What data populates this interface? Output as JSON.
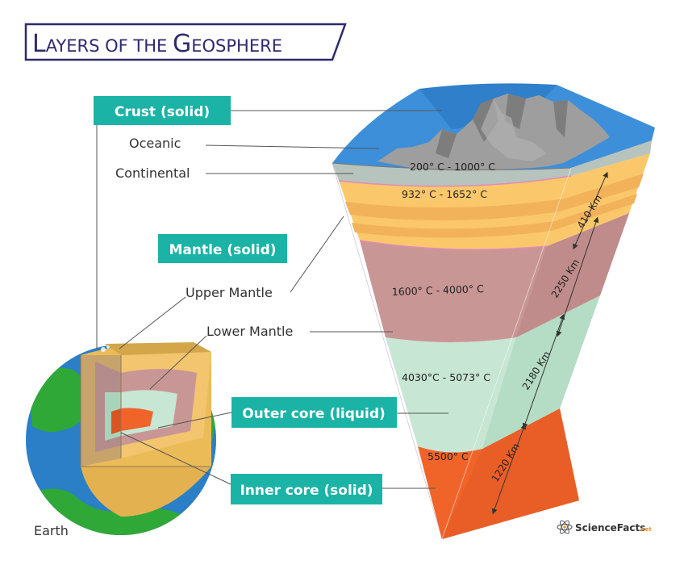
{
  "title": {
    "first_letter": "L",
    "first_rest": "AYERS OF THE ",
    "second_letter": "G",
    "second_rest": "EOSPHERE"
  },
  "labels": {
    "crust": "Crust (solid)",
    "oceanic": "Oceanic",
    "continental": "Continental",
    "mantle": "Mantle (solid)",
    "upper_mantle": "Upper Mantle",
    "lower_mantle": "Lower Mantle",
    "outer_core": "Outer core (liquid)",
    "inner_core": "Inner core (solid)",
    "earth": "Earth"
  },
  "temperatures": {
    "crust": "200° C - 1000° C",
    "upper_mantle": "932° C - 1652° C",
    "lower_mantle": "1600° C - 4000° C",
    "outer_core": "4030°C - 5073° C",
    "inner_core": "5500° C"
  },
  "thickness": {
    "upper_mantle": "410 Km",
    "lower_mantle": "2250 Km",
    "outer_core": "2180 Km",
    "inner_core": "1220 Km"
  },
  "logo": {
    "name": "ScienceFacts",
    "suffix": ".net"
  },
  "colors": {
    "title": "#2d2a6e",
    "teal_label": "#1bb3a6",
    "ocean": "#3d8fd9",
    "crust": "#b7c3bd",
    "upper_mantle": "#fbc76b",
    "lower_mantle": "#c99696",
    "outer_core": "#c7e6d3",
    "inner_core": "#f0642a",
    "land": "#2fa838"
  }
}
